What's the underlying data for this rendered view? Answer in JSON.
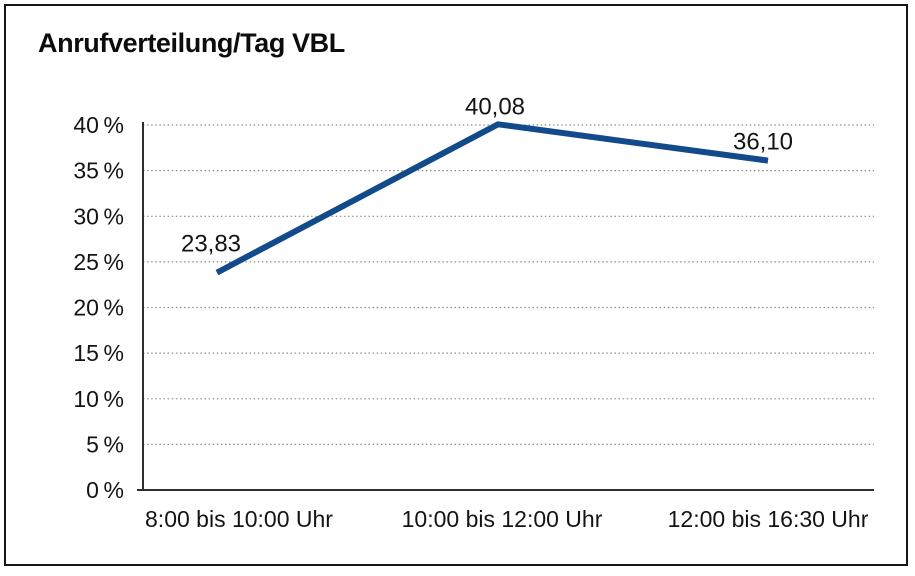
{
  "chart_data": {
    "type": "line",
    "title": "Anrufverteilung/Tag VBL",
    "categories": [
      "8:00 bis 10:00 Uhr",
      "10:00 bis 12:00 Uhr",
      "12:00 bis 16:30 Uhr"
    ],
    "series": [
      {
        "name": "Anrufverteilung",
        "values": [
          23.83,
          40.08,
          36.1
        ],
        "value_labels": [
          "23,83",
          "40,08",
          "36,10"
        ]
      }
    ],
    "xlabel": "",
    "ylabel": "",
    "ylim": [
      0,
      40
    ],
    "ytick_step": 5,
    "ytick_labels": [
      "0 %",
      "5 %",
      "10 %",
      "15 %",
      "20 %",
      "25 %",
      "30 %",
      "35 %",
      "40 %"
    ],
    "grid": "horizontal-dotted",
    "legend_position": "none",
    "line_color": "#124A8B",
    "decimal_separator": ","
  }
}
